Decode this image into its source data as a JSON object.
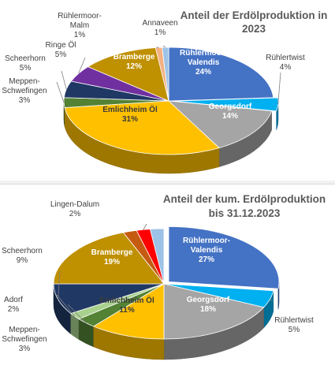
{
  "chart_data": [
    {
      "type": "pie",
      "title": [
        "Anteil der Erdölproduktion in",
        "2023"
      ],
      "start_angle": -90,
      "slices": [
        {
          "label": [
            "Rühlermoor-",
            "Valendis"
          ],
          "value": 24,
          "value_label": "24%",
          "color": "#4472C4",
          "text_color": "#ffffff",
          "inside": true
        },
        {
          "label": [
            "Rühlertwist"
          ],
          "value": 4,
          "value_label": "4%",
          "color": "#00B0F0",
          "inside": false
        },
        {
          "label": [
            "Georgsdorf"
          ],
          "value": 14,
          "value_label": "14%",
          "color": "#A5A5A5",
          "text_color": "#ffffff",
          "inside": true
        },
        {
          "label": [
            "Emlichheim Öl"
          ],
          "value": 31,
          "value_label": "31%",
          "color": "#FFC000",
          "text_color": "#3a3a3a",
          "inside": true
        },
        {
          "label": [
            "Meppen-",
            "Schwefingen"
          ],
          "value": 3,
          "value_label": "3%",
          "color": "#548235",
          "inside": false
        },
        {
          "label": [
            "Scheerhorn"
          ],
          "value": 5,
          "value_label": "5%",
          "color": "#203864",
          "inside": false
        },
        {
          "label": [
            "Ringe Öl"
          ],
          "value": 5,
          "value_label": "5%",
          "color": "#7030A0",
          "inside": false
        },
        {
          "label": [
            "Bramberge"
          ],
          "value": 12,
          "value_label": "12%",
          "color": "#BF9000",
          "text_color": "#ffffff",
          "inside": true
        },
        {
          "label": [
            "Rühlermoor-",
            "Malm"
          ],
          "value": 1,
          "value_label": "1%",
          "color": "#F4B183",
          "inside": false
        },
        {
          "label": [
            "Annaveen"
          ],
          "value": 1,
          "value_label": "1%",
          "color": "#9DC3E6",
          "inside": false
        }
      ]
    },
    {
      "type": "pie",
      "title": [
        "Anteil der kum. Erdölproduktion",
        "bis 31.12.2023"
      ],
      "start_angle": -90,
      "slices": [
        {
          "label": [
            "Rühlermoor-",
            "Valendis"
          ],
          "value": 27,
          "value_label": "27%",
          "color": "#4472C4",
          "text_color": "#ffffff",
          "inside": true
        },
        {
          "label": [
            "Rühlertwist"
          ],
          "value": 5,
          "value_label": "5%",
          "color": "#00B0F0",
          "inside": false
        },
        {
          "label": [
            "Georgsdorf"
          ],
          "value": 18,
          "value_label": "18%",
          "color": "#A5A5A5",
          "text_color": "#ffffff",
          "inside": true
        },
        {
          "label": [
            "Emlichheim Öl"
          ],
          "value": 11,
          "value_label": "11%",
          "color": "#FFC000",
          "text_color": "#3a3a3a",
          "inside": true
        },
        {
          "label": [
            "Meppen-",
            "Schwefingen"
          ],
          "value": 3,
          "value_label": "3%",
          "color": "#548235",
          "inside": false
        },
        {
          "label": [
            "Adorf"
          ],
          "value": 2,
          "value_label": "2%",
          "color": "#A9D18E",
          "inside": false
        },
        {
          "label": [
            "Scheerhorn"
          ],
          "value": 9,
          "value_label": "9%",
          "color": "#203864",
          "inside": false
        },
        {
          "label": [
            "Bramberge"
          ],
          "value": 19,
          "value_label": "19%",
          "color": "#BF9000",
          "text_color": "#ffffff",
          "inside": true
        },
        {
          "label": [],
          "value": 2,
          "value_label": "",
          "color": "#C55A11",
          "inside": false
        },
        {
          "label": [
            "Lingen-Dalum"
          ],
          "value": 2,
          "value_label": "2%",
          "color": "#FF0000",
          "inside": false
        },
        {
          "label": [],
          "value": 2,
          "value_label": "",
          "color": "#9DC3E6",
          "inside": false
        }
      ]
    }
  ]
}
